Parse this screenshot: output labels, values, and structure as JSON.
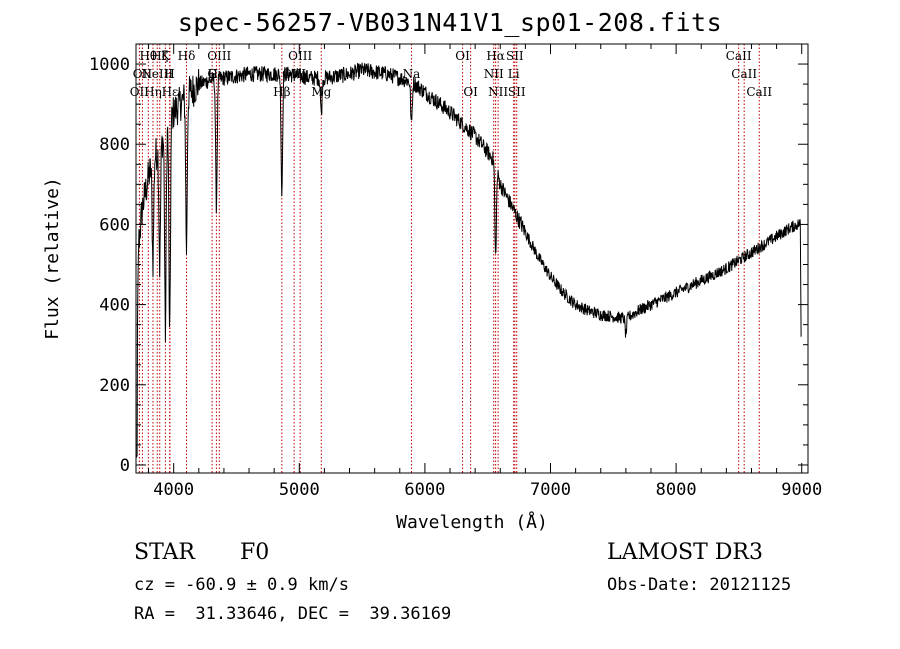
{
  "title": "spec-56257-VB031N41V1_sp01-208.fits",
  "info": {
    "object_class": "STAR",
    "subclass": "F0",
    "cz": "cz = -60.9 ± 0.9 km/s",
    "radec": "RA =  31.33646, DEC =  39.36169",
    "survey": "LAMOST DR3",
    "obs_date": "Obs-Date: 20121125"
  },
  "colors": {
    "line_marker": "#c00000",
    "spectrum": "#000000"
  },
  "chart_data": {
    "type": "line",
    "title": "spec-56257-VB031N41V1_sp01-208.fits",
    "xlabel": "Wavelength (Å)",
    "ylabel": "Flux (relative)",
    "xlim": [
      3700,
      9050
    ],
    "ylim": [
      -20,
      1050
    ],
    "xticks": [
      4000,
      5000,
      6000,
      7000,
      8000,
      9000
    ],
    "yticks": [
      0,
      200,
      400,
      600,
      800,
      1000
    ],
    "spectrum_anchor_points": {
      "x": [
        3700,
        3720,
        3750,
        3800,
        3850,
        3900,
        3950,
        4000,
        4100,
        4200,
        4300,
        4400,
        4500,
        4600,
        4700,
        4800,
        4900,
        5000,
        5100,
        5200,
        5300,
        5400,
        5500,
        5600,
        5700,
        5800,
        5900,
        6000,
        6100,
        6200,
        6300,
        6400,
        6500,
        6550,
        6600,
        6700,
        6800,
        6900,
        7000,
        7100,
        7200,
        7300,
        7400,
        7500,
        7600,
        7700,
        7800,
        7900,
        8000,
        8100,
        8200,
        8300,
        8400,
        8500,
        8600,
        8700,
        8800,
        8900,
        9000
      ],
      "y": [
        20,
        550,
        640,
        720,
        770,
        800,
        850,
        880,
        920,
        950,
        960,
        965,
        970,
        975,
        975,
        975,
        975,
        970,
        965,
        965,
        970,
        975,
        985,
        980,
        975,
        965,
        955,
        930,
        905,
        880,
        850,
        820,
        780,
        760,
        700,
        640,
        580,
        520,
        470,
        430,
        400,
        385,
        375,
        370,
        365,
        385,
        400,
        415,
        430,
        445,
        460,
        475,
        490,
        510,
        530,
        550,
        570,
        590,
        605
      ]
    },
    "absorption_features": [
      {
        "x": 3835,
        "depth": 250
      },
      {
        "x": 3889,
        "depth": 300
      },
      {
        "x": 3934,
        "depth": 500
      },
      {
        "x": 3968,
        "depth": 550
      },
      {
        "x": 4102,
        "depth": 380
      },
      {
        "x": 4340,
        "depth": 320
      },
      {
        "x": 4861,
        "depth": 300
      },
      {
        "x": 5175,
        "depth": 90
      },
      {
        "x": 5893,
        "depth": 110
      },
      {
        "x": 6563,
        "depth": 230
      },
      {
        "x": 7600,
        "depth": 40
      }
    ],
    "line_markers": [
      {
        "x": 3727,
        "label": "OII",
        "row": 3
      },
      {
        "x": 3751,
        "label": "OII",
        "row": 2
      },
      {
        "x": 3798,
        "label": "Hθ",
        "row": 1
      },
      {
        "x": 3835,
        "label": "Hη",
        "row": 3
      },
      {
        "x": 3869,
        "label": "NeIII",
        "row": 2
      },
      {
        "x": 3889,
        "label": "Hζ",
        "row": 1
      },
      {
        "x": 3934,
        "label": "K",
        "row": 1
      },
      {
        "x": 3968,
        "label": "H",
        "row": 2
      },
      {
        "x": 3970,
        "label": "Hε",
        "row": 3
      },
      {
        "x": 4102,
        "label": "Hδ",
        "row": 1
      },
      {
        "x": 4306,
        "label": "G",
        "row": 2
      },
      {
        "x": 4340,
        "label": "Hγ",
        "row": 2
      },
      {
        "x": 4363,
        "label": "OIII",
        "row": 1
      },
      {
        "x": 4861,
        "label": "Hβ",
        "row": 3
      },
      {
        "x": 4959,
        "label": "OIII",
        "row": 2
      },
      {
        "x": 5007,
        "label": "OIII",
        "row": 1
      },
      {
        "x": 5175,
        "label": "Mg",
        "row": 3
      },
      {
        "x": 5893,
        "label": "Na",
        "row": 2
      },
      {
        "x": 6300,
        "label": "OI",
        "row": 1
      },
      {
        "x": 6364,
        "label": "OI",
        "row": 3
      },
      {
        "x": 6548,
        "label": "NII",
        "row": 2
      },
      {
        "x": 6563,
        "label": "Hα",
        "row": 1
      },
      {
        "x": 6583,
        "label": "NII",
        "row": 3
      },
      {
        "x": 6707,
        "label": "Li",
        "row": 2
      },
      {
        "x": 6716,
        "label": "SII",
        "row": 1
      },
      {
        "x": 6731,
        "label": "SII",
        "row": 3
      },
      {
        "x": 8498,
        "label": "CaII",
        "row": 1
      },
      {
        "x": 8542,
        "label": "CaII",
        "row": 2
      },
      {
        "x": 8662,
        "label": "CaII",
        "row": 3
      }
    ]
  }
}
